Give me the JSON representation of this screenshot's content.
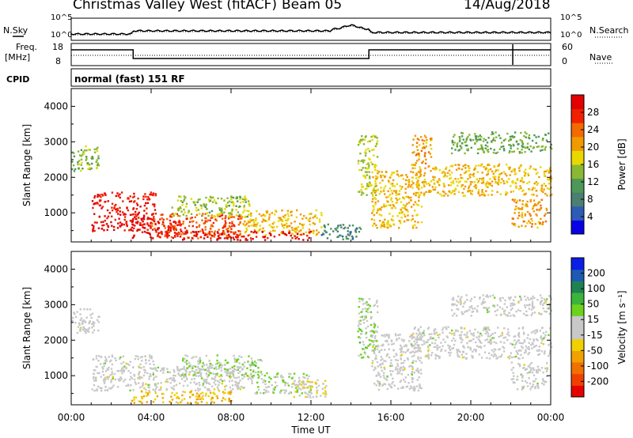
{
  "header": {
    "title": "Christmas Valley West (fitACF)",
    "beam": "Beam 05",
    "date": "14/Aug/2018"
  },
  "top_panels": {
    "nsky_label": "N.Sky",
    "nsearch_label": "N.Search",
    "noise_ticks": [
      "10^5",
      "10^0"
    ],
    "freq_label_1": "Freq.",
    "freq_label_2": "[MHz]",
    "freq_ticks": [
      "18",
      "8"
    ],
    "nave_label": "Nave",
    "nave_ticks": [
      "60",
      "0"
    ],
    "cpid_label": "CPID",
    "cpid_text": "normal (fast) 151 RF"
  },
  "chart_data": [
    {
      "type": "heatmap",
      "title": "",
      "xlabel": "Time UT",
      "ylabel": "Slant Range [km]",
      "xlim": [
        0,
        24
      ],
      "ylim": [
        180,
        4500
      ],
      "x_ticks": [
        "00:00",
        "04:00",
        "08:00",
        "12:00",
        "16:00",
        "20:00",
        "00:00"
      ],
      "y_ticks": [
        "1000",
        "2000",
        "3000",
        "4000"
      ],
      "colorbar": {
        "label": "Power [dB]",
        "ticks": [
          "28",
          "24",
          "20",
          "16",
          "12",
          "8",
          "4"
        ],
        "colors": [
          "#0a00e6",
          "#2c5cb6",
          "#4a7f72",
          "#4d9858",
          "#8ab832",
          "#e8d800",
          "#f09a00",
          "#f26a00",
          "#f02000",
          "#e20000"
        ],
        "range": [
          0,
          30
        ]
      },
      "regions": [
        {
          "t": [
            0.0,
            1.4
          ],
          "r": [
            2200,
            2900
          ],
          "v": 13
        },
        {
          "t": [
            1.0,
            4.2
          ],
          "r": [
            500,
            1600
          ],
          "v": 27
        },
        {
          "t": [
            3.0,
            5.5
          ],
          "r": [
            300,
            800
          ],
          "v": 28
        },
        {
          "t": [
            4.0,
            8.5
          ],
          "r": [
            300,
            1000
          ],
          "v": 24
        },
        {
          "t": [
            5.0,
            9.0
          ],
          "r": [
            900,
            1500
          ],
          "v": 14
        },
        {
          "t": [
            8.5,
            12.5
          ],
          "r": [
            400,
            1100
          ],
          "v": 18
        },
        {
          "t": [
            5.5,
            12.0
          ],
          "r": [
            250,
            500
          ],
          "v": 28
        },
        {
          "t": [
            12.5,
            14.5
          ],
          "r": [
            250,
            700
          ],
          "v": 8
        },
        {
          "t": [
            14.3,
            15.3
          ],
          "r": [
            1500,
            3200
          ],
          "v": 15
        },
        {
          "t": [
            15.0,
            17.5
          ],
          "r": [
            600,
            2200
          ],
          "v": 18
        },
        {
          "t": [
            17.0,
            24.0
          ],
          "r": [
            1500,
            2400
          ],
          "v": 18
        },
        {
          "t": [
            17.0,
            18.0
          ],
          "r": [
            2400,
            3200
          ],
          "v": 20
        },
        {
          "t": [
            19.0,
            24.0
          ],
          "r": [
            2700,
            3300
          ],
          "v": 12
        },
        {
          "t": [
            22.0,
            23.8
          ],
          "r": [
            600,
            1400
          ],
          "v": 20
        }
      ]
    },
    {
      "type": "heatmap",
      "title": "",
      "xlabel": "Time UT",
      "ylabel": "Slant Range [km]",
      "xlim": [
        0,
        24
      ],
      "ylim": [
        180,
        4500
      ],
      "x_ticks": [
        "00:00",
        "04:00",
        "08:00",
        "12:00",
        "16:00",
        "20:00",
        "00:00"
      ],
      "y_ticks": [
        "1000",
        "2000",
        "3000",
        "4000"
      ],
      "colorbar": {
        "label": "Velocity [m s⁻¹]",
        "ticks": [
          "200",
          "100",
          "50",
          "15",
          "-15",
          "-50",
          "-100",
          "-200"
        ],
        "colors": [
          "#e60000",
          "#f04000",
          "#f07000",
          "#f0a000",
          "#f0d000",
          "#c8c8c8",
          "#c8c8c8",
          "#6cd21e",
          "#3cb43c",
          "#1e8250",
          "#1e5ab4",
          "#0a1ee6"
        ],
        "range": [
          -250,
          250
        ]
      },
      "regions": [
        {
          "t": [
            0.0,
            1.4
          ],
          "r": [
            2200,
            2900
          ],
          "v": 0
        },
        {
          "t": [
            1.0,
            4.2
          ],
          "r": [
            600,
            1600
          ],
          "v": 0
        },
        {
          "t": [
            3.0,
            8.0
          ],
          "r": [
            250,
            600
          ],
          "v": -80
        },
        {
          "t": [
            4.0,
            9.0
          ],
          "r": [
            600,
            1300
          ],
          "v": 0
        },
        {
          "t": [
            5.5,
            9.5
          ],
          "r": [
            1000,
            1600
          ],
          "v": 40
        },
        {
          "t": [
            9.0,
            12.0
          ],
          "r": [
            500,
            1100
          ],
          "v": 30
        },
        {
          "t": [
            11.0,
            12.8
          ],
          "r": [
            400,
            900
          ],
          "v": -40
        },
        {
          "t": [
            14.3,
            15.3
          ],
          "r": [
            1500,
            3200
          ],
          "v": 40
        },
        {
          "t": [
            15.0,
            17.5
          ],
          "r": [
            600,
            2200
          ],
          "v": 0
        },
        {
          "t": [
            17.0,
            24.0
          ],
          "r": [
            1500,
            2400
          ],
          "v": 0
        },
        {
          "t": [
            19.0,
            24.0
          ],
          "r": [
            2700,
            3300
          ],
          "v": 0
        },
        {
          "t": [
            22.0,
            23.8
          ],
          "r": [
            600,
            1400
          ],
          "v": 0
        }
      ]
    }
  ]
}
